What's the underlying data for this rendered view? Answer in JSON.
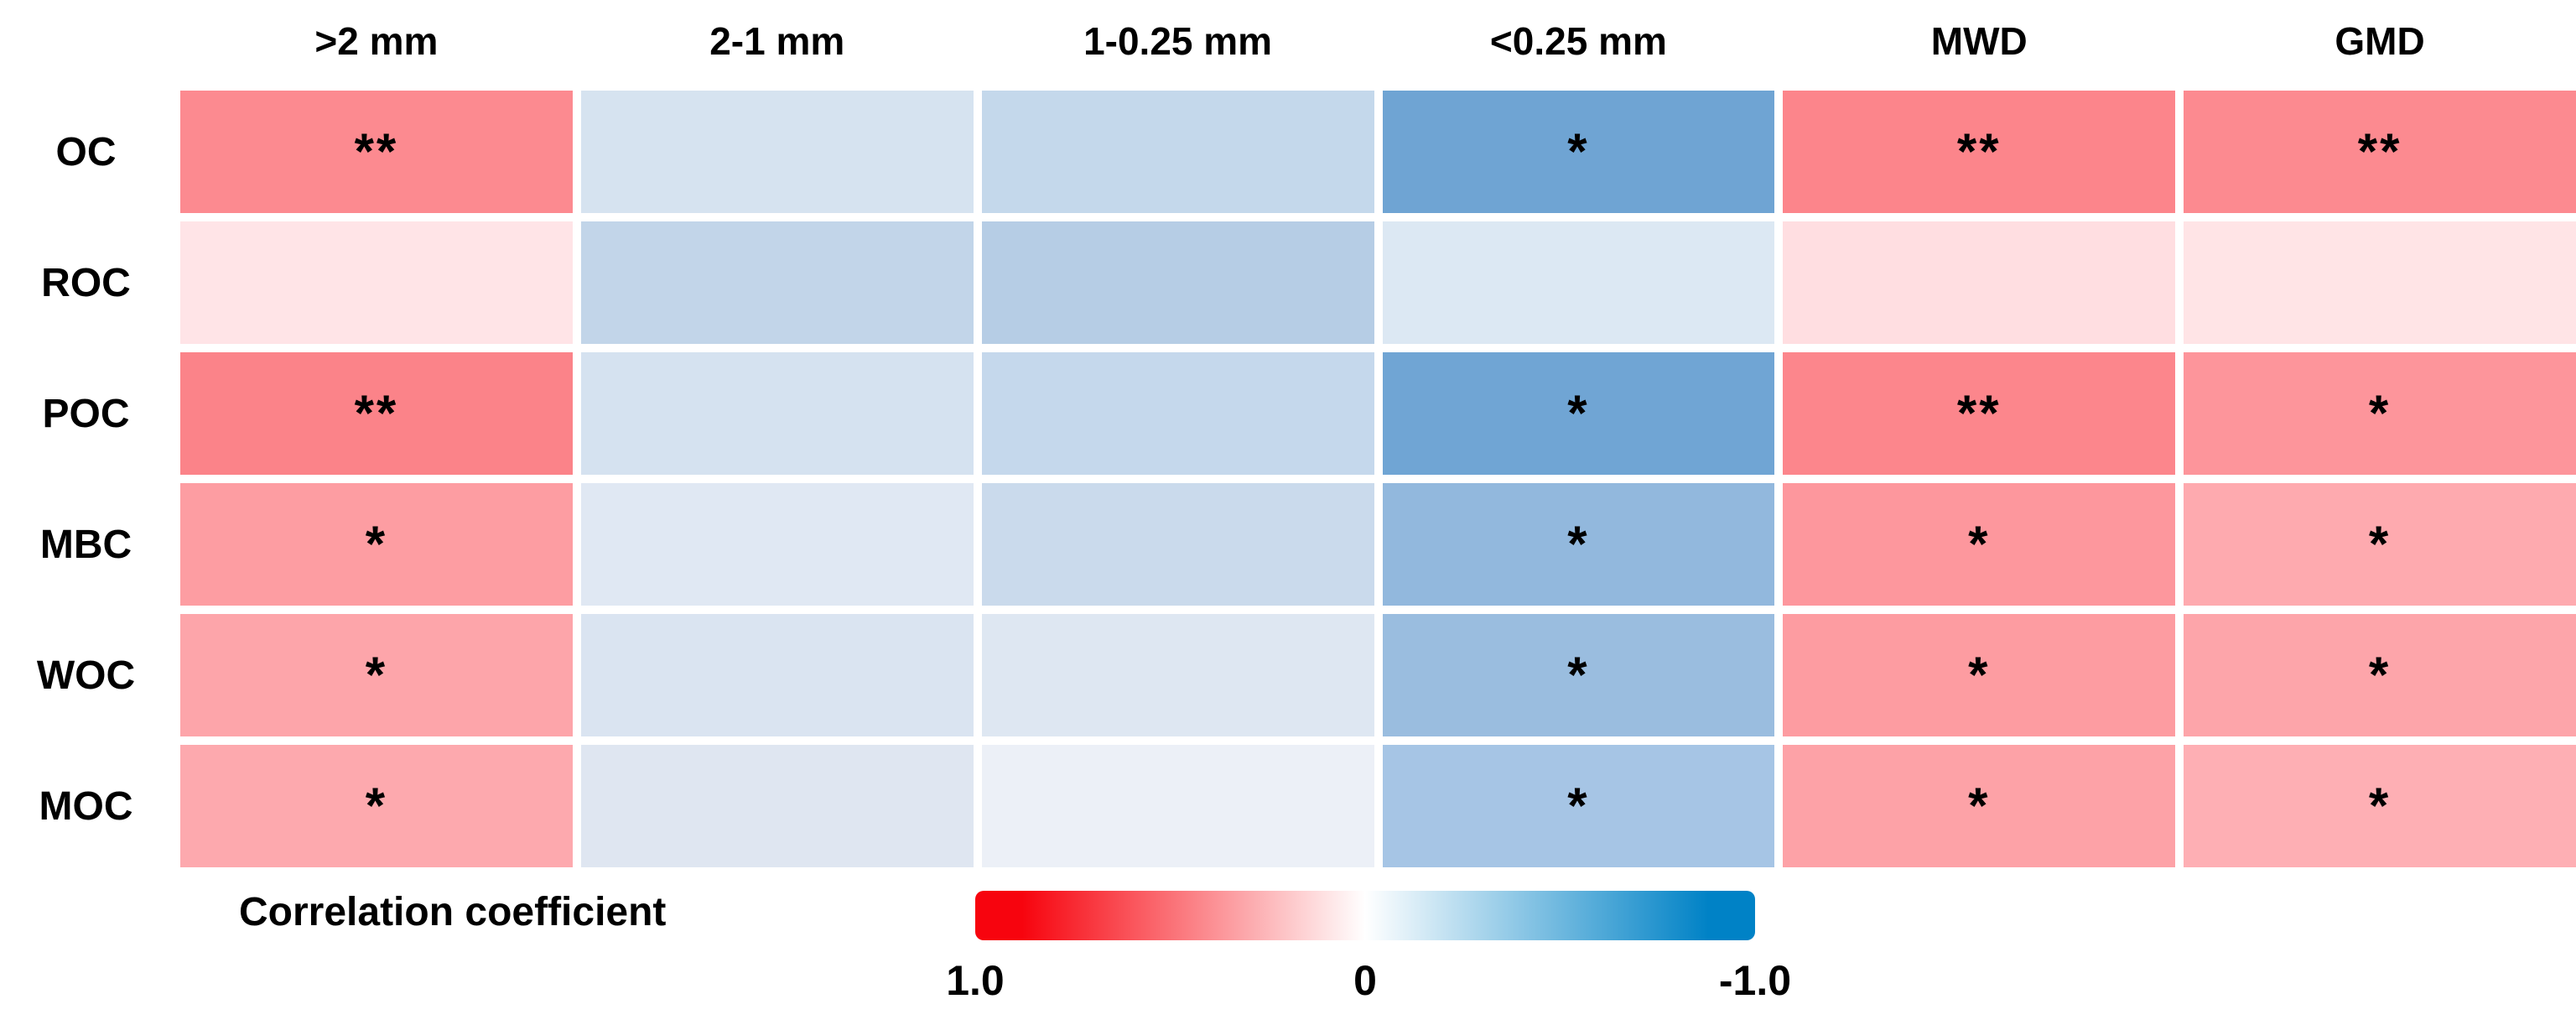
{
  "chart_data": {
    "type": "heatmap",
    "title": "",
    "columns": [
      ">2 mm",
      "2-1 mm",
      "1-0.25 mm",
      "<0.25 mm",
      "MWD",
      "GMD"
    ],
    "rows": [
      "OC",
      "ROC",
      "POC",
      "MBC",
      "WOC",
      "MOC"
    ],
    "value_scale_note": "values estimated from colors via legend; 1.0 = red, 0 = white, -1.0 = blue",
    "cells": [
      [
        {
          "value": 0.47,
          "sig": "**",
          "color": "#FC8A90"
        },
        {
          "value": -0.16,
          "sig": "",
          "color": "#D6E3F0"
        },
        {
          "value": -0.23,
          "sig": "",
          "color": "#C4D8EB"
        },
        {
          "value": -0.56,
          "sig": "*",
          "color": "#6FA4D3"
        },
        {
          "value": 0.49,
          "sig": "**",
          "color": "#FC858B"
        },
        {
          "value": 0.47,
          "sig": "**",
          "color": "#FC8A90"
        }
      ],
      [
        {
          "value": 0.11,
          "sig": "",
          "color": "#FFE4E7"
        },
        {
          "value": -0.24,
          "sig": "",
          "color": "#C2D5E9"
        },
        {
          "value": -0.29,
          "sig": "",
          "color": "#B6CDE5"
        },
        {
          "value": -0.14,
          "sig": "",
          "color": "#DCE8F3"
        },
        {
          "value": 0.13,
          "sig": "",
          "color": "#FFDEE1"
        },
        {
          "value": 0.11,
          "sig": "",
          "color": "#FFE4E6"
        }
      ],
      [
        {
          "value": 0.49,
          "sig": "**",
          "color": "#FB8389"
        },
        {
          "value": -0.16,
          "sig": "",
          "color": "#D5E2F0"
        },
        {
          "value": -0.23,
          "sig": "",
          "color": "#C5D8EC"
        },
        {
          "value": -0.55,
          "sig": "*",
          "color": "#70A5D4"
        },
        {
          "value": 0.48,
          "sig": "**",
          "color": "#FC868C"
        },
        {
          "value": 0.42,
          "sig": "*",
          "color": "#FD959B"
        }
      ],
      [
        {
          "value": 0.39,
          "sig": "*",
          "color": "#FD9DA2"
        },
        {
          "value": -0.12,
          "sig": "",
          "color": "#E0E8F3"
        },
        {
          "value": -0.21,
          "sig": "",
          "color": "#CADAEC"
        },
        {
          "value": -0.43,
          "sig": "*",
          "color": "#92B8DD"
        },
        {
          "value": 0.41,
          "sig": "*",
          "color": "#FD979D"
        },
        {
          "value": 0.34,
          "sig": "*",
          "color": "#FEAAAF"
        }
      ],
      [
        {
          "value": 0.36,
          "sig": "*",
          "color": "#FDA5AA"
        },
        {
          "value": -0.15,
          "sig": "",
          "color": "#DAE4F1"
        },
        {
          "value": -0.13,
          "sig": "",
          "color": "#DEE7F2"
        },
        {
          "value": -0.4,
          "sig": "*",
          "color": "#9ABDDF"
        },
        {
          "value": 0.39,
          "sig": "*",
          "color": "#FD9CA1"
        },
        {
          "value": 0.36,
          "sig": "*",
          "color": "#FDA5AA"
        }
      ],
      [
        {
          "value": 0.34,
          "sig": "*",
          "color": "#FDA9AE"
        },
        {
          "value": -0.13,
          "sig": "",
          "color": "#DFE6F1"
        },
        {
          "value": -0.07,
          "sig": "",
          "color": "#ECF0F7"
        },
        {
          "value": -0.35,
          "sig": "*",
          "color": "#A6C5E5"
        },
        {
          "value": 0.37,
          "sig": "*",
          "color": "#FDA2A7"
        },
        {
          "value": 0.32,
          "sig": "*",
          "color": "#FEAFB4"
        }
      ]
    ],
    "legend": {
      "title": "Correlation coefficient",
      "ticks": [
        "1.0",
        "0",
        "-1.0"
      ],
      "gradient": [
        "#F7040E",
        "#FFFFFF",
        "#0082C6"
      ],
      "position": "bottom"
    }
  }
}
